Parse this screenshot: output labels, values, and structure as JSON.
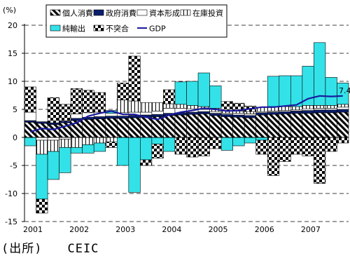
{
  "chart_data": {
    "type": "bar",
    "stacked": true,
    "unit_label": "(%)",
    "ylim": [
      -15,
      20
    ],
    "y_ticks": [
      20,
      15,
      10,
      5,
      0,
      -5,
      -10,
      -15
    ],
    "x_tick_labels": [
      "2001",
      "2002",
      "2003",
      "2004",
      "2005",
      "2006",
      "2007"
    ],
    "x_tick_quarter_index": [
      0,
      4,
      8,
      12,
      16,
      20,
      24
    ],
    "grid": "horizontal dashed",
    "legend_position": "top",
    "categories": [
      "2001Q1",
      "2001Q2",
      "2001Q3",
      "2001Q4",
      "2002Q1",
      "2002Q2",
      "2002Q3",
      "2002Q4",
      "2003Q1",
      "2003Q2",
      "2003Q3",
      "2003Q4",
      "2004Q1",
      "2004Q2",
      "2004Q3",
      "2004Q4",
      "2005Q1",
      "2005Q2",
      "2005Q3",
      "2005Q4",
      "2006Q1",
      "2006Q2",
      "2006Q3",
      "2006Q4",
      "2007Q1",
      "2007Q2",
      "2007Q3",
      "2007Q4"
    ],
    "series": [
      {
        "name": "個人消費",
        "key": "consumption",
        "values": [
          2.7,
          2.5,
          2.3,
          2.6,
          3.0,
          3.2,
          3.3,
          3.4,
          3.4,
          3.5,
          3.6,
          3.7,
          3.9,
          4.0,
          4.1,
          4.2,
          3.9,
          3.7,
          3.6,
          3.5,
          4.0,
          4.1,
          4.2,
          4.3,
          4.3,
          4.4,
          4.4,
          4.5
        ]
      },
      {
        "name": "政府消費",
        "key": "government",
        "values": [
          0.3,
          0.3,
          0.3,
          0.3,
          0.4,
          0.4,
          0.4,
          0.4,
          0.4,
          0.4,
          0.4,
          0.4,
          0.4,
          0.4,
          0.4,
          0.4,
          0.4,
          0.4,
          0.4,
          0.4,
          0.4,
          0.4,
          0.4,
          0.4,
          0.5,
          0.5,
          0.5,
          0.5
        ]
      },
      {
        "name": "資本形成",
        "key": "capital",
        "values": [
          1.5,
          -0.5,
          -0.5,
          -0.3,
          0.8,
          0.8,
          0.8,
          0.5,
          0.6,
          0.6,
          0.5,
          0.6,
          0.9,
          0.8,
          0.6,
          0.4,
          0.3,
          0.2,
          0.3,
          0.3,
          0.2,
          0.2,
          0.2,
          0.2,
          0.3,
          0.3,
          0.3,
          0.4
        ]
      },
      {
        "name": "在庫投資",
        "key": "inventory",
        "values": [
          0.0,
          -2.5,
          -2.0,
          -1.5,
          -1.8,
          -1.3,
          -1.0,
          -0.8,
          2.3,
          2.0,
          1.7,
          1.5,
          0.8,
          0.7,
          0.6,
          0.5,
          0.6,
          0.5,
          0.4,
          0.4,
          0.8,
          0.8,
          0.7,
          0.6,
          0.6,
          0.5,
          0.5,
          0.5
        ]
      },
      {
        "name": "純輸出",
        "key": "netexports",
        "values": [
          -1.5,
          -8.0,
          -5.0,
          -4.5,
          -1.0,
          -1.5,
          -1.5,
          0.5,
          -5.0,
          -9.8,
          -4.0,
          -1.2,
          -2.5,
          4.0,
          4.3,
          6.0,
          4.0,
          -2.3,
          -1.5,
          -1.0,
          -0.5,
          5.4,
          5.5,
          5.5,
          7.0,
          11.2,
          5.0,
          3.8
        ]
      },
      {
        "name": "不突合",
        "key": "discrepancy",
        "values": [
          4.5,
          -2.5,
          4.5,
          3.0,
          4.5,
          4.0,
          3.5,
          -1.0,
          3.0,
          8.0,
          -1.0,
          -2.5,
          2.5,
          -3.0,
          -3.5,
          -3.3,
          -2.0,
          1.6,
          1.4,
          1.0,
          -2.5,
          -6.8,
          -4.3,
          -3.0,
          -3.3,
          -8.2,
          -2.5,
          -1.0
        ]
      }
    ],
    "line_series": {
      "name": "GDP",
      "values": [
        1.0,
        1.6,
        1.4,
        2.0,
        2.6,
        3.8,
        4.3,
        4.7,
        4.1,
        4.1,
        3.6,
        3.2,
        4.0,
        4.5,
        4.8,
        5.2,
        5.0,
        4.7,
        4.8,
        5.1,
        5.4,
        5.4,
        5.6,
        5.8,
        6.9,
        7.4,
        7.3,
        7.4
      ]
    },
    "annotations": [
      {
        "text": "7.4"
      }
    ]
  },
  "colors": {
    "government": "#0a1e6e",
    "netexports": "#33e2e8",
    "gdp_line": "#1a1a9e",
    "grid": "#000000"
  },
  "legend": [
    {
      "label": "個人消費",
      "pattern": "diag"
    },
    {
      "label": "政府消費",
      "pattern": "navy"
    },
    {
      "label": "資本形成",
      "pattern": "white"
    },
    {
      "label": "在庫投資",
      "pattern": "vlines"
    },
    {
      "label": "純輸出",
      "pattern": "cyan"
    },
    {
      "label": "不突合",
      "pattern": "checker"
    },
    {
      "label": "GDP",
      "pattern": "line"
    }
  ],
  "source": "(出所)　　CEIC"
}
